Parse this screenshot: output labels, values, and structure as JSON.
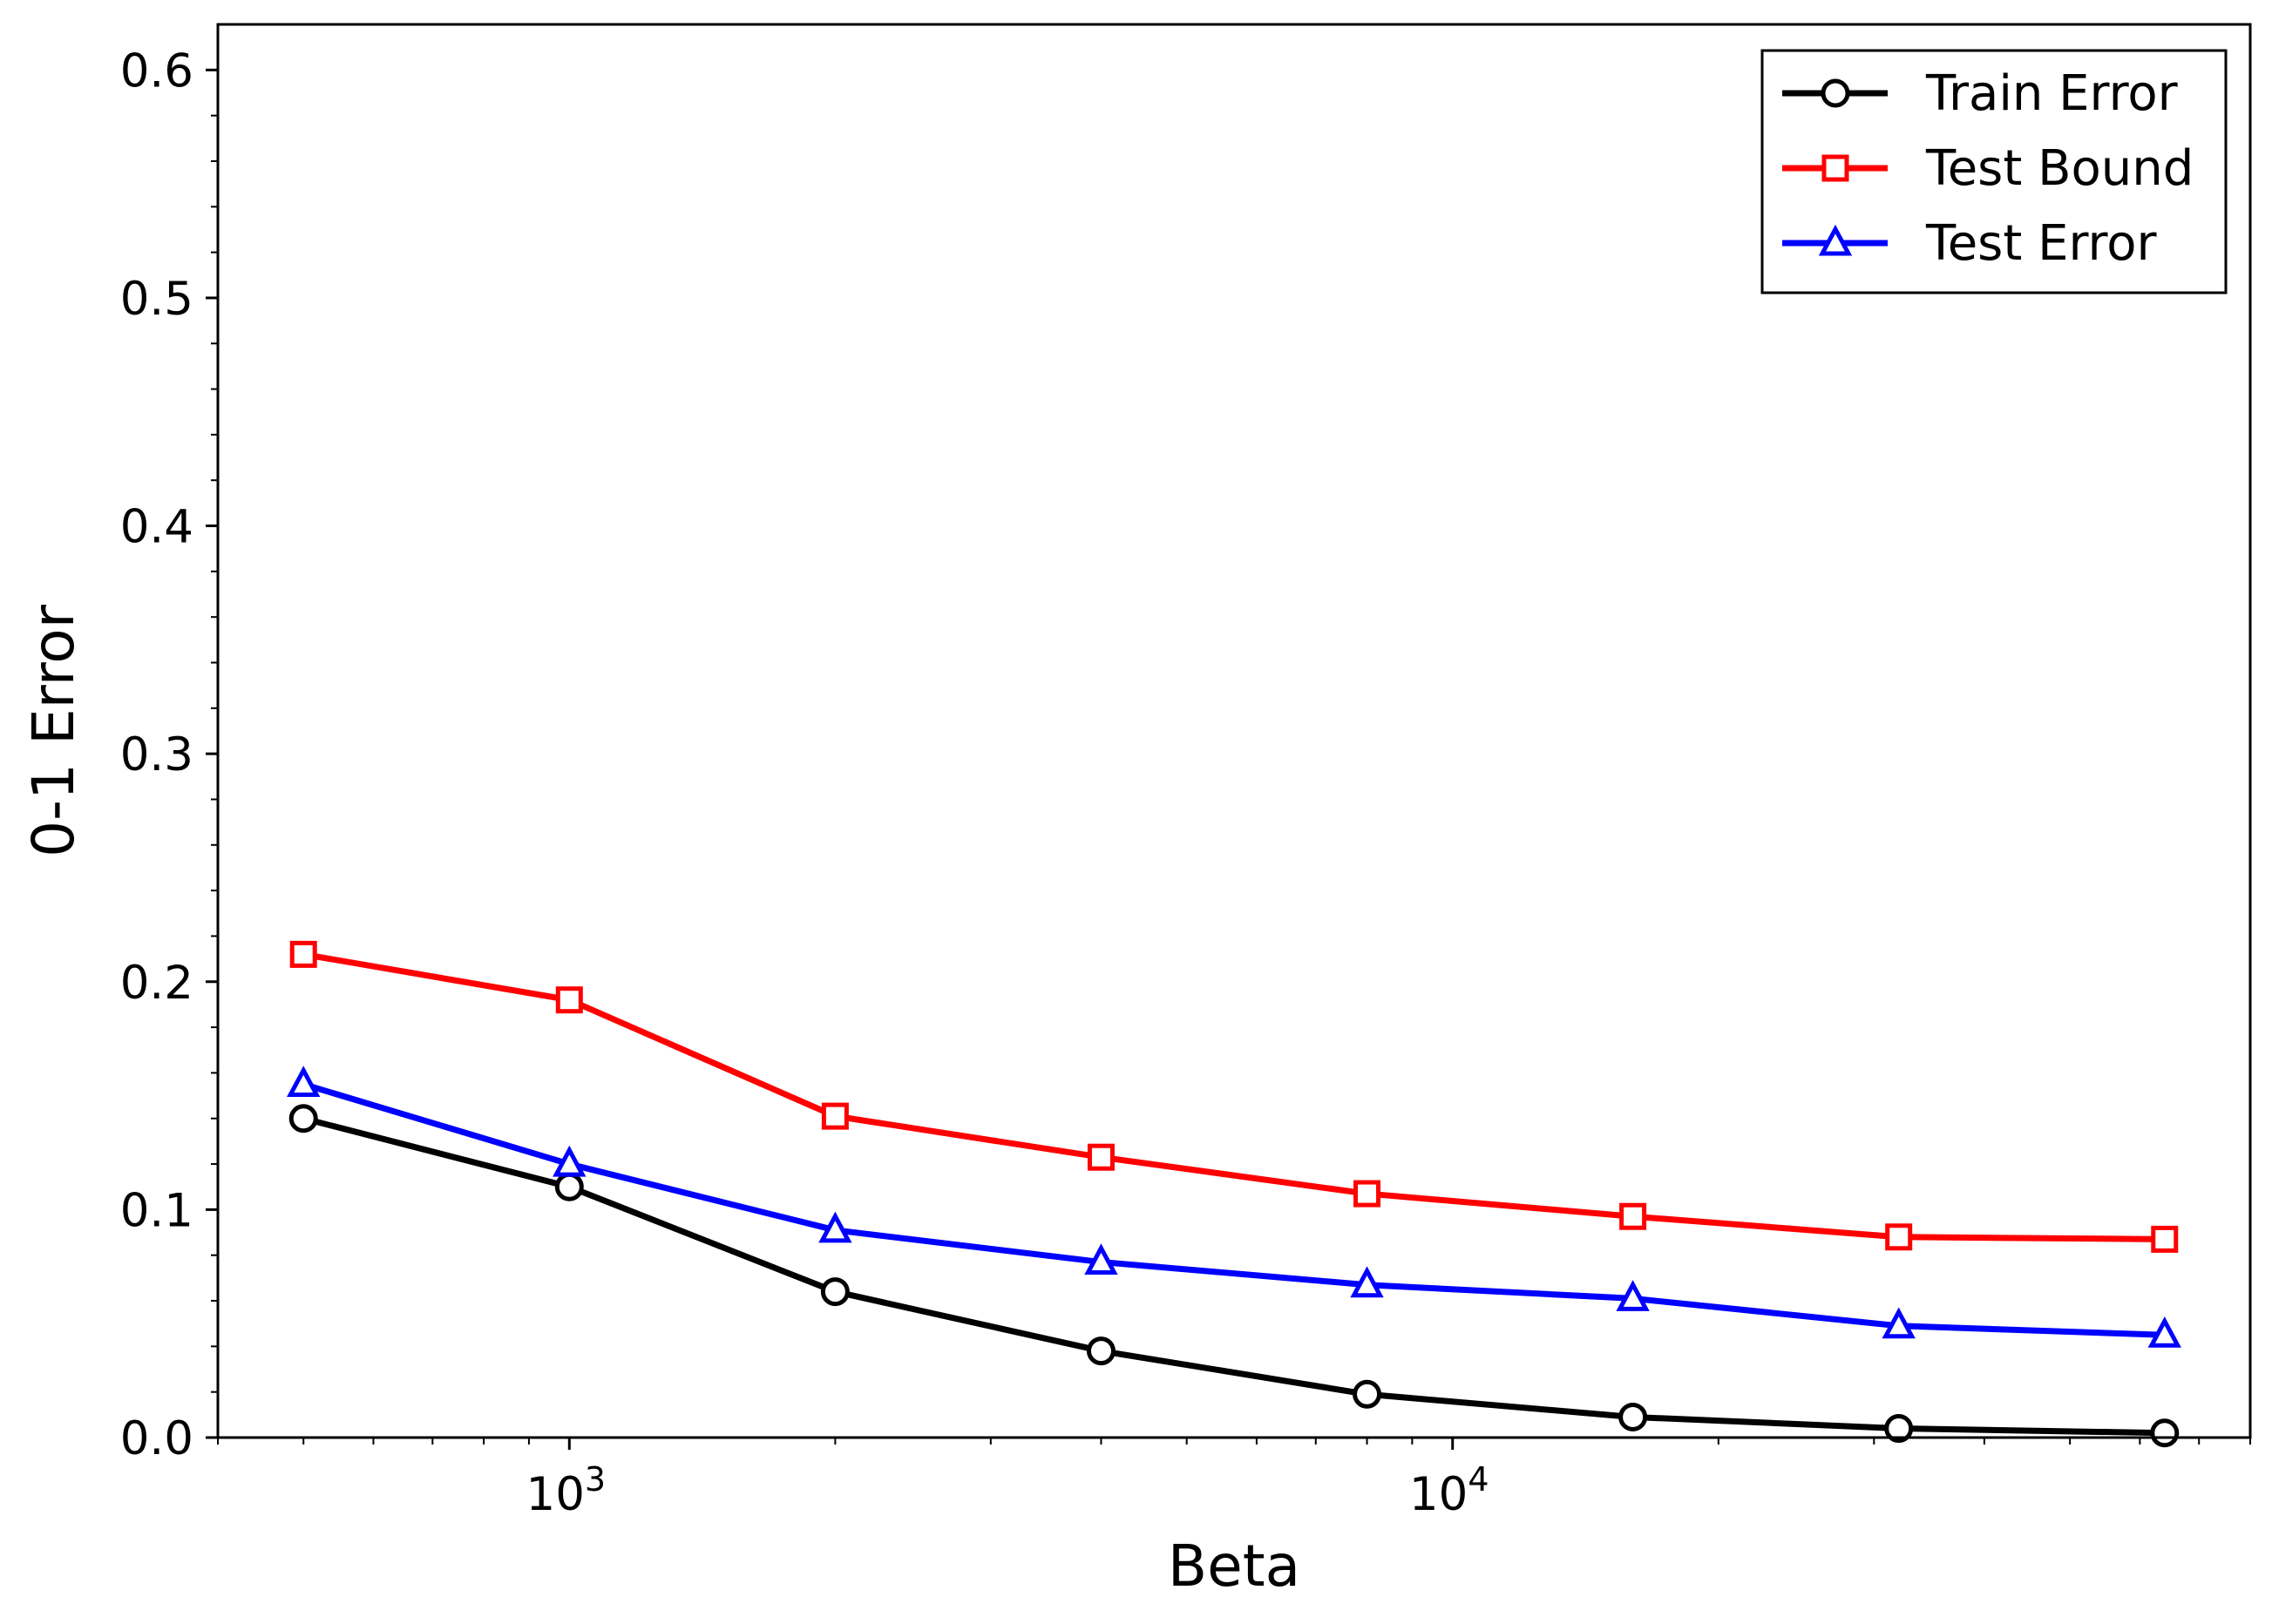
{
  "chart_data": {
    "type": "line",
    "title": "",
    "xlabel": "Beta",
    "ylabel": "0-1 Error",
    "xscale": "log",
    "xlim": [
      400,
      80000
    ],
    "ylim": [
      0,
      0.62
    ],
    "grid": false,
    "legend_position": "top-right",
    "x": [
      500,
      1000,
      2000,
      4000,
      8000,
      16000,
      32000,
      64000
    ],
    "y_ticks": [
      {
        "value": 0.0,
        "label": "0.0"
      },
      {
        "value": 0.1,
        "label": "0.1"
      },
      {
        "value": 0.2,
        "label": "0.2"
      },
      {
        "value": 0.3,
        "label": "0.3"
      },
      {
        "value": 0.4,
        "label": "0.4"
      },
      {
        "value": 0.5,
        "label": "0.5"
      },
      {
        "value": 0.6,
        "label": "0.6"
      }
    ],
    "x_ticks": [
      {
        "value": 1000,
        "base": "10",
        "exp": "3"
      },
      {
        "value": 10000,
        "base": "10",
        "exp": "4"
      }
    ],
    "series": [
      {
        "name": "Train Error",
        "color": "#000000",
        "marker": "circle",
        "values": [
          0.14,
          0.11,
          0.064,
          0.038,
          0.019,
          0.009,
          0.004,
          0.002
        ]
      },
      {
        "name": "Test Bound",
        "color": "#ff0000",
        "marker": "square",
        "values": [
          0.212,
          0.192,
          0.141,
          0.123,
          0.107,
          0.097,
          0.088,
          0.087
        ]
      },
      {
        "name": "Test Error",
        "color": "#0000ff",
        "marker": "triangle",
        "values": [
          0.155,
          0.12,
          0.091,
          0.077,
          0.067,
          0.061,
          0.049,
          0.045
        ]
      }
    ]
  }
}
